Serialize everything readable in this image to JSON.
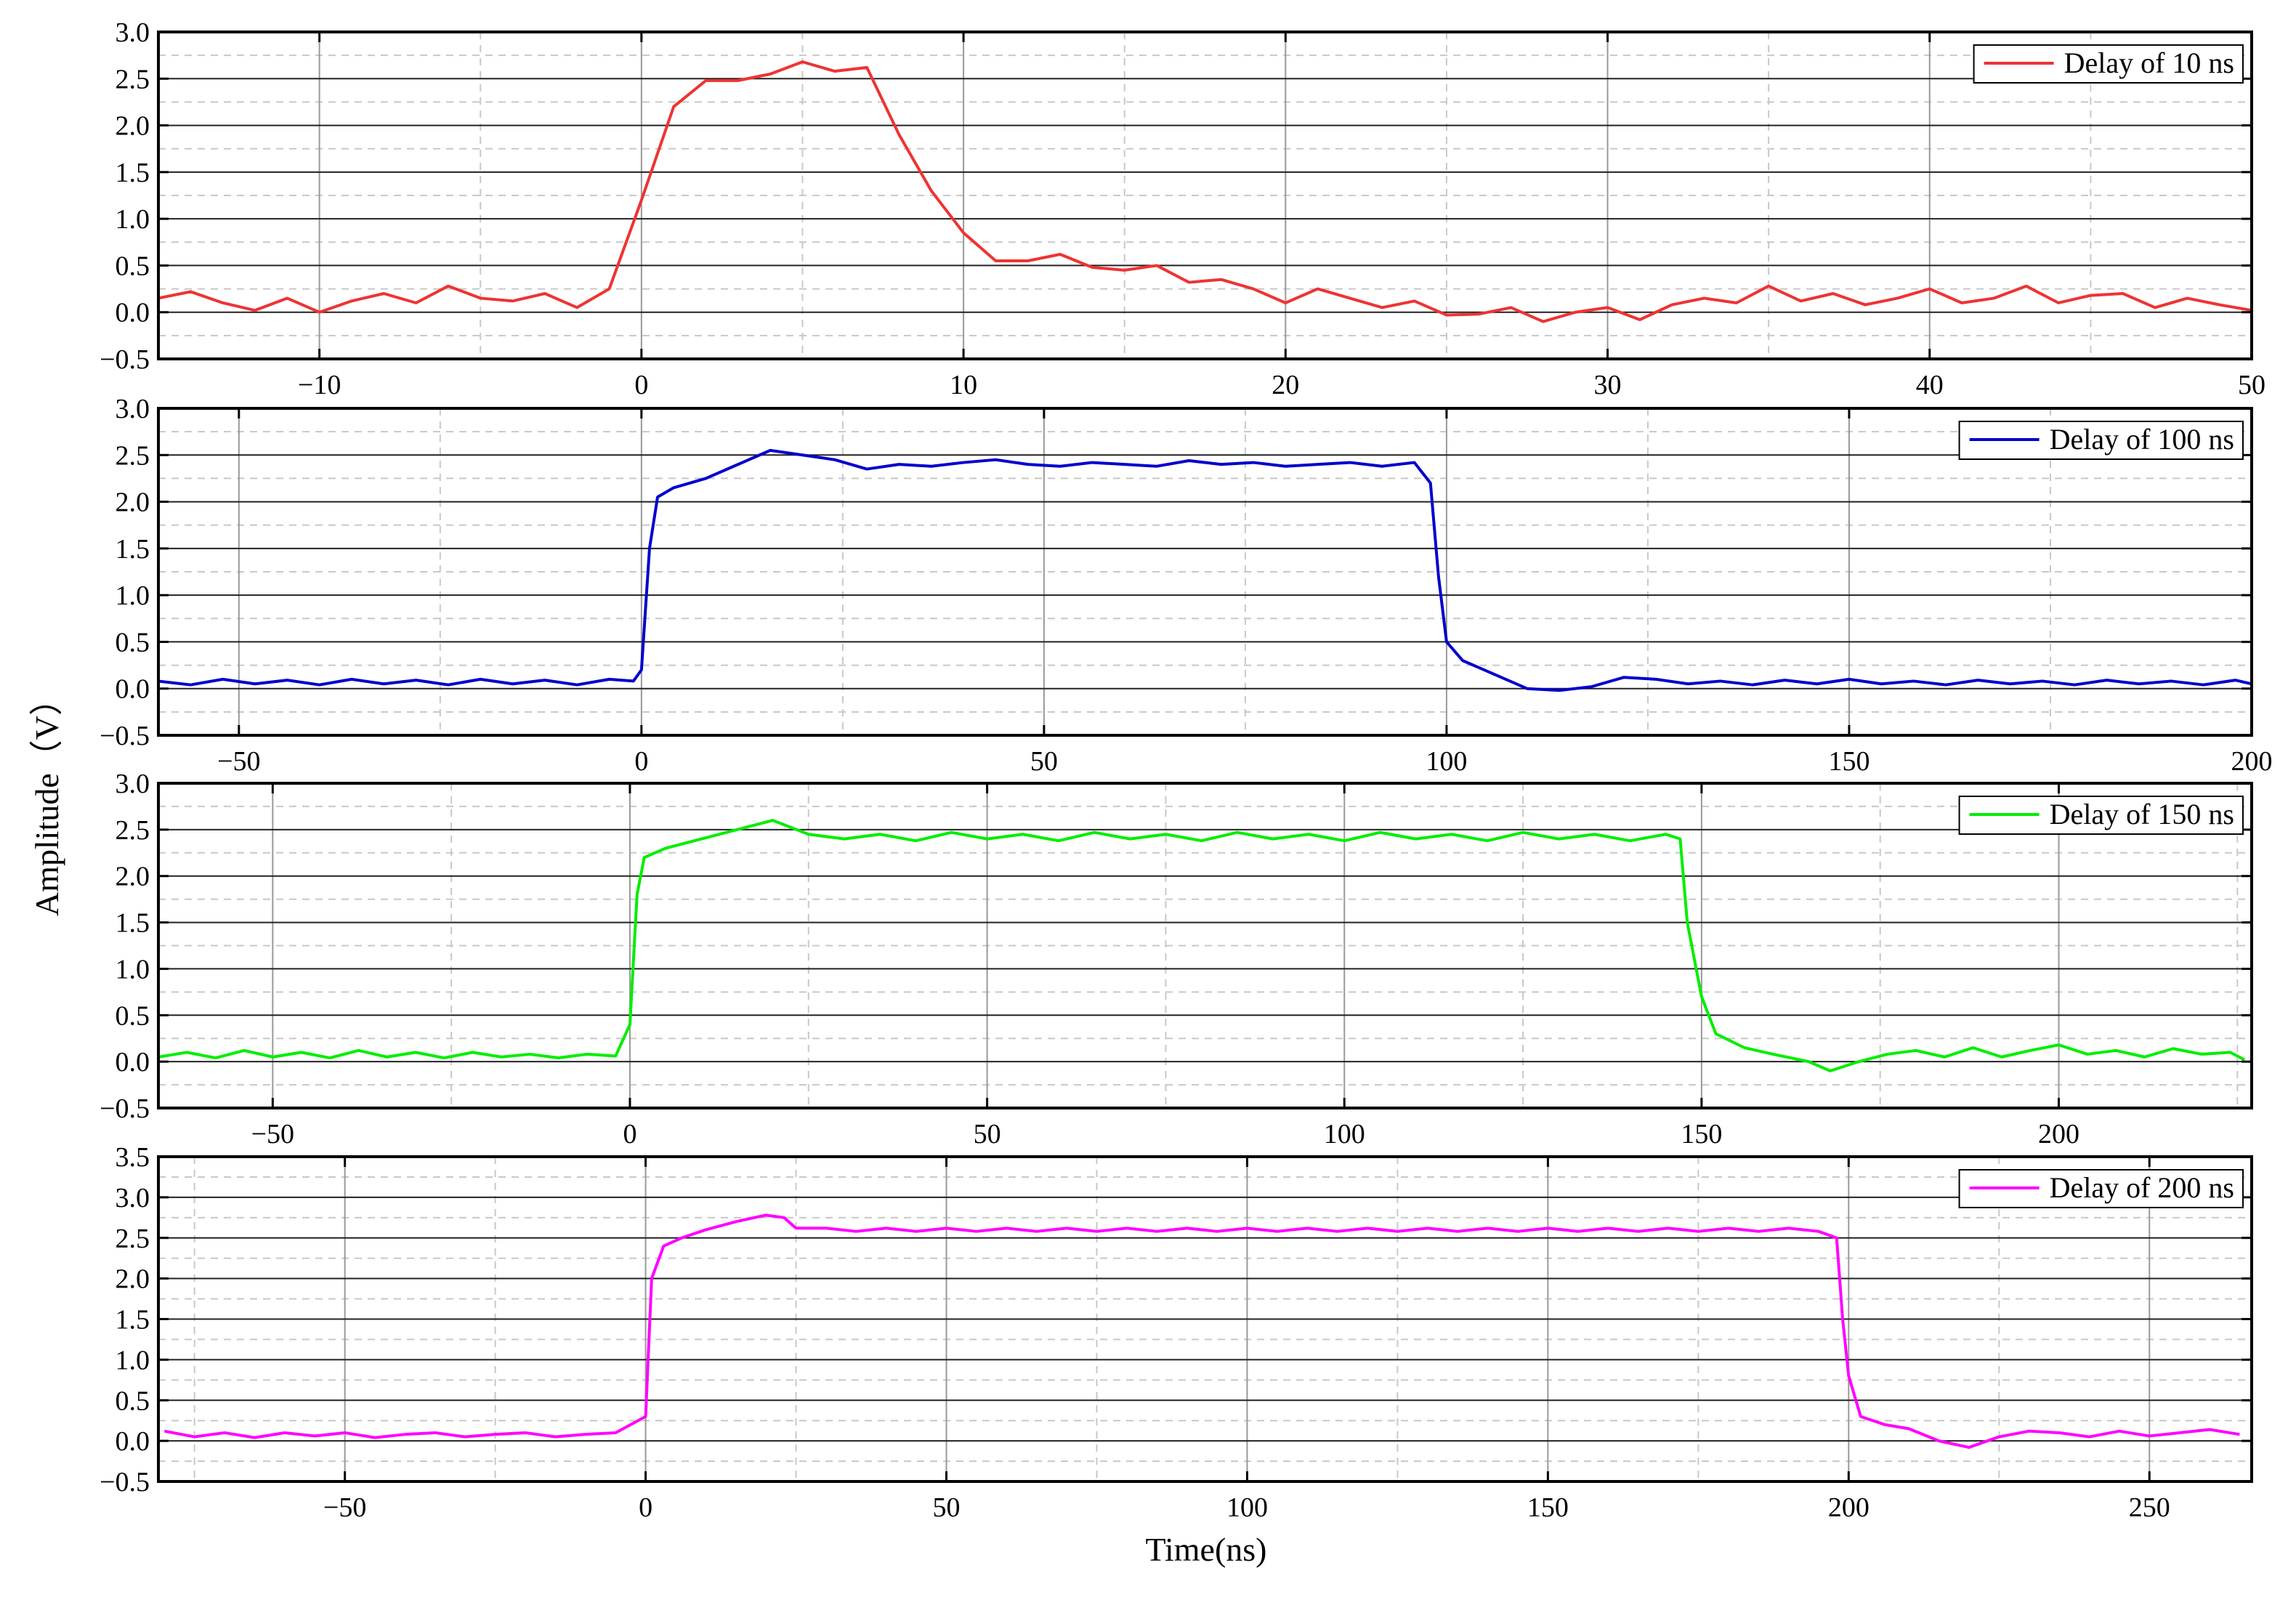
{
  "ylabel": "Amplitude（V）",
  "xlabel": "Time(ns)",
  "chart_data": [
    {
      "type": "line",
      "grid": true,
      "legend": "top-right",
      "xlim": [
        -15,
        50
      ],
      "xticks": [
        {
          "value": -10,
          "label": "−10"
        },
        0,
        10,
        20,
        30,
        40,
        50
      ],
      "ylim": [
        -0.5,
        3.0
      ],
      "yticks": [
        {
          "value": -0.5,
          "label": "−0.5"
        },
        {
          "value": 0,
          "label": "0.0"
        },
        0.5,
        {
          "value": 1,
          "label": "1.0"
        },
        1.5,
        {
          "value": 2,
          "label": "2.0"
        },
        2.5,
        {
          "value": 3,
          "label": "3.0"
        }
      ],
      "x": [
        -15,
        -14,
        -13,
        -12,
        -11,
        -10,
        -9,
        -8,
        -7,
        -6,
        -5,
        -4,
        -3,
        -2,
        -1,
        0,
        1,
        2,
        3,
        4,
        5,
        6,
        7,
        8,
        9,
        10,
        11,
        12,
        13,
        14,
        15,
        16,
        17,
        18,
        19,
        20,
        21,
        22,
        23,
        24,
        25,
        26,
        27,
        28,
        29,
        30,
        31,
        32,
        33,
        34,
        35,
        36,
        37,
        38,
        39,
        40,
        41,
        42,
        43,
        44,
        45,
        46,
        47,
        48,
        49,
        50
      ],
      "series": [
        {
          "name": "Delay of 10 ns",
          "color": "#ee3333",
          "values": [
            0.15,
            0.22,
            0.1,
            0.02,
            0.15,
            0.0,
            0.12,
            0.2,
            0.1,
            0.28,
            0.15,
            0.12,
            0.2,
            0.05,
            0.25,
            1.2,
            2.2,
            2.48,
            2.48,
            2.55,
            2.68,
            2.58,
            2.62,
            1.9,
            1.3,
            0.85,
            0.55,
            0.55,
            0.62,
            0.48,
            0.45,
            0.5,
            0.32,
            0.35,
            0.25,
            0.1,
            0.25,
            0.15,
            0.05,
            0.12,
            -0.03,
            -0.02,
            0.05,
            -0.1,
            0.0,
            0.05,
            -0.08,
            0.08,
            0.15,
            0.1,
            0.28,
            0.12,
            0.2,
            0.08,
            0.15,
            0.25,
            0.1,
            0.15,
            0.28,
            0.1,
            0.18,
            0.2,
            0.05,
            0.15,
            0.08,
            0.02
          ]
        }
      ]
    },
    {
      "type": "line",
      "grid": true,
      "legend": "top-right",
      "xlim": [
        -60,
        200
      ],
      "xticks": [
        {
          "value": -50,
          "label": "−50"
        },
        0,
        50,
        100,
        150,
        200
      ],
      "ylim": [
        -0.5,
        3.0
      ],
      "yticks": [
        {
          "value": -0.5,
          "label": "−0.5"
        },
        {
          "value": 0,
          "label": "0.0"
        },
        0.5,
        {
          "value": 1,
          "label": "1.0"
        },
        1.5,
        {
          "value": 2,
          "label": "2.0"
        },
        2.5,
        {
          "value": 3,
          "label": "3.0"
        }
      ],
      "x": [
        -60,
        -56,
        -52,
        -48,
        -44,
        -40,
        -36,
        -32,
        -28,
        -24,
        -20,
        -16,
        -12,
        -8,
        -4,
        -1,
        0,
        1,
        2,
        4,
        8,
        12,
        16,
        20,
        24,
        28,
        32,
        36,
        40,
        44,
        48,
        52,
        56,
        60,
        64,
        68,
        72,
        76,
        80,
        84,
        88,
        92,
        96,
        98,
        99,
        100,
        102,
        106,
        110,
        114,
        118,
        122,
        126,
        130,
        134,
        138,
        142,
        146,
        150,
        154,
        158,
        162,
        166,
        170,
        174,
        178,
        182,
        186,
        190,
        194,
        198,
        200
      ],
      "series": [
        {
          "name": "Delay of 100 ns",
          "color": "#0000cc",
          "values": [
            0.08,
            0.04,
            0.1,
            0.05,
            0.09,
            0.04,
            0.1,
            0.05,
            0.09,
            0.04,
            0.1,
            0.05,
            0.09,
            0.04,
            0.1,
            0.08,
            0.2,
            1.5,
            2.05,
            2.15,
            2.25,
            2.4,
            2.55,
            2.5,
            2.45,
            2.35,
            2.4,
            2.38,
            2.42,
            2.45,
            2.4,
            2.38,
            2.42,
            2.4,
            2.38,
            2.44,
            2.4,
            2.42,
            2.38,
            2.4,
            2.42,
            2.38,
            2.42,
            2.2,
            1.2,
            0.5,
            0.3,
            0.15,
            0.0,
            -0.02,
            0.02,
            0.12,
            0.1,
            0.05,
            0.08,
            0.04,
            0.09,
            0.05,
            0.1,
            0.05,
            0.08,
            0.04,
            0.09,
            0.05,
            0.08,
            0.04,
            0.09,
            0.05,
            0.08,
            0.04,
            0.09,
            0.05
          ]
        }
      ]
    },
    {
      "type": "line",
      "grid": true,
      "legend": "top-right",
      "xlim": [
        -66,
        227
      ],
      "xticks": [
        {
          "value": -50,
          "label": "−50"
        },
        0,
        50,
        100,
        150,
        200
      ],
      "ylim": [
        -0.5,
        3.0
      ],
      "yticks": [
        {
          "value": -0.5,
          "label": "−0.5"
        },
        {
          "value": 0,
          "label": "0.0"
        },
        0.5,
        {
          "value": 1,
          "label": "1.0"
        },
        1.5,
        {
          "value": 2,
          "label": "2.0"
        },
        2.5,
        {
          "value": 3,
          "label": "3.0"
        }
      ],
      "x": [
        -66,
        -62,
        -58,
        -54,
        -50,
        -46,
        -42,
        -38,
        -34,
        -30,
        -26,
        -22,
        -18,
        -14,
        -10,
        -6,
        -2,
        0,
        1,
        2,
        5,
        10,
        15,
        20,
        25,
        30,
        35,
        40,
        45,
        50,
        55,
        60,
        65,
        70,
        75,
        80,
        85,
        90,
        95,
        100,
        105,
        110,
        115,
        120,
        125,
        130,
        135,
        140,
        145,
        147,
        148,
        150,
        152,
        156,
        160,
        165,
        168,
        172,
        176,
        180,
        184,
        188,
        192,
        196,
        200,
        204,
        208,
        212,
        216,
        220,
        224,
        226
      ],
      "series": [
        {
          "name": "Delay of 150 ns",
          "color": "#00ee00",
          "values": [
            0.05,
            0.1,
            0.04,
            0.12,
            0.05,
            0.1,
            0.04,
            0.12,
            0.05,
            0.1,
            0.04,
            0.1,
            0.05,
            0.08,
            0.04,
            0.08,
            0.06,
            0.4,
            1.8,
            2.2,
            2.3,
            2.4,
            2.5,
            2.6,
            2.45,
            2.4,
            2.45,
            2.38,
            2.47,
            2.4,
            2.45,
            2.38,
            2.47,
            2.4,
            2.45,
            2.38,
            2.47,
            2.4,
            2.45,
            2.38,
            2.47,
            2.4,
            2.45,
            2.38,
            2.47,
            2.4,
            2.45,
            2.38,
            2.45,
            2.4,
            1.5,
            0.7,
            0.3,
            0.15,
            0.08,
            0.0,
            -0.1,
            0.0,
            0.08,
            0.12,
            0.05,
            0.15,
            0.05,
            0.12,
            0.18,
            0.08,
            0.12,
            0.05,
            0.14,
            0.08,
            0.1,
            0.02
          ]
        }
      ]
    },
    {
      "type": "line",
      "grid": true,
      "legend": "top-right",
      "xlim": [
        -81,
        267
      ],
      "xticks": [
        {
          "value": -50,
          "label": "−50"
        },
        0,
        50,
        100,
        150,
        200,
        250
      ],
      "ylim": [
        -0.5,
        3.5
      ],
      "yticks": [
        {
          "value": -0.5,
          "label": "−0.5"
        },
        {
          "value": 0,
          "label": "0.0"
        },
        0.5,
        {
          "value": 1,
          "label": "1.0"
        },
        1.5,
        {
          "value": 2,
          "label": "2.0"
        },
        2.5,
        {
          "value": 3,
          "label": "3.0"
        },
        3.5
      ],
      "x": [
        -80,
        -75,
        -70,
        -65,
        -60,
        -55,
        -50,
        -45,
        -40,
        -35,
        -30,
        -25,
        -20,
        -15,
        -10,
        -5,
        0,
        1,
        3,
        6,
        10,
        15,
        20,
        23,
        25,
        30,
        35,
        40,
        45,
        50,
        55,
        60,
        65,
        70,
        75,
        80,
        85,
        90,
        95,
        100,
        105,
        110,
        115,
        120,
        125,
        130,
        135,
        140,
        145,
        150,
        155,
        160,
        165,
        170,
        175,
        180,
        185,
        190,
        195,
        198,
        199,
        200,
        202,
        206,
        210,
        215,
        220,
        225,
        230,
        235,
        240,
        245,
        250,
        255,
        260,
        265
      ],
      "series": [
        {
          "name": "Delay of 200 ns",
          "color": "#ff00ff",
          "values": [
            0.12,
            0.05,
            0.1,
            0.04,
            0.1,
            0.06,
            0.1,
            0.04,
            0.08,
            0.1,
            0.05,
            0.08,
            0.1,
            0.05,
            0.08,
            0.1,
            0.3,
            2.0,
            2.4,
            2.5,
            2.6,
            2.7,
            2.78,
            2.75,
            2.62,
            2.62,
            2.58,
            2.62,
            2.58,
            2.62,
            2.58,
            2.62,
            2.58,
            2.62,
            2.58,
            2.62,
            2.58,
            2.62,
            2.58,
            2.62,
            2.58,
            2.62,
            2.58,
            2.62,
            2.58,
            2.62,
            2.58,
            2.62,
            2.58,
            2.62,
            2.58,
            2.62,
            2.58,
            2.62,
            2.58,
            2.62,
            2.58,
            2.62,
            2.58,
            2.5,
            1.5,
            0.8,
            0.3,
            0.2,
            0.15,
            0.0,
            -0.08,
            0.05,
            0.12,
            0.1,
            0.05,
            0.12,
            0.06,
            0.1,
            0.14,
            0.08
          ]
        }
      ]
    }
  ]
}
